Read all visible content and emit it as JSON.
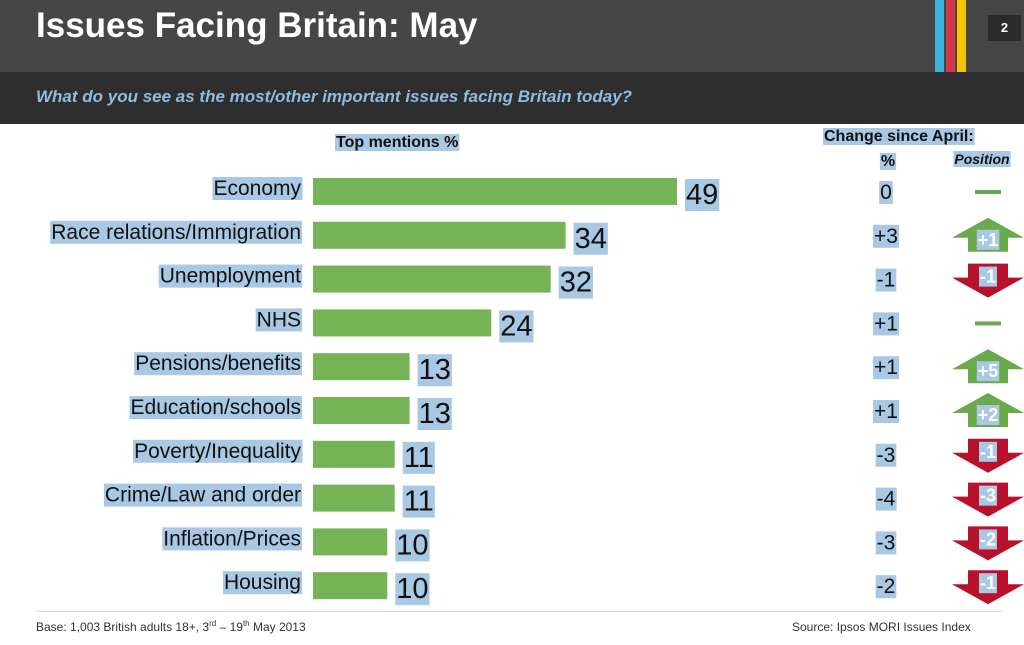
{
  "slide": {
    "title": "Issues Facing Britain: May",
    "page_number": "2",
    "subtitle": "What do you see as the most/other important issues facing Britain today?",
    "stripe_colors": [
      "#3eb2d8",
      "#d7374a",
      "#f2c500"
    ],
    "base_note": {
      "prefix": "Base: 1,003 British adults 18+, 3",
      "sup1": "rd",
      "mid": " – 19",
      "sup2": "th",
      "suffix": " May 2013"
    },
    "source": "Source: Ipsos MORI  Issues Index"
  },
  "chart_data": {
    "type": "bar",
    "orientation": "horizontal",
    "title": "Top mentions %",
    "change_header": "Change since April:",
    "change_pct_header": "%",
    "position_header": "Position",
    "categories": [
      "Economy",
      "Race relations/Immigration",
      "Unemployment",
      "NHS",
      "Pensions/benefits",
      "Education/schools",
      "Poverty/Inequality",
      "Crime/Law and order",
      "Inflation/Prices",
      "Housing"
    ],
    "values": [
      49,
      34,
      32,
      24,
      13,
      13,
      11,
      11,
      10,
      10
    ],
    "change_pct": [
      "0",
      "+3",
      "-1",
      "+1",
      "+1",
      "+1",
      "-3",
      "-4",
      "-3",
      "-2"
    ],
    "position_change": [
      "",
      "+1",
      "-1",
      "",
      "+5",
      "+2",
      "-1",
      "-3",
      "-2",
      "-1"
    ],
    "position_direction": [
      "same",
      "up",
      "down",
      "same",
      "up",
      "up",
      "down",
      "down",
      "down",
      "down"
    ],
    "bar_color": "#76b256",
    "up_color": "#6aaa4c",
    "down_color": "#b8112c",
    "xlim": [
      0,
      49
    ]
  }
}
